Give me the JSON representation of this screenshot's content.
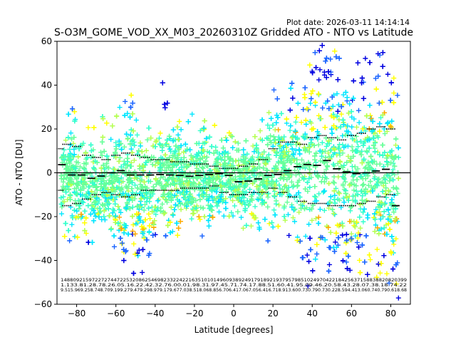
{
  "chart_data": {
    "type": "scatter",
    "title": "S-O3M_GOME_VOD_XX_M03_20260310Z Gridded ATO - NTO vs Latitude",
    "plot_date": "Plot date: 2026-03-11 14:14:14",
    "xlabel": "Latitude [degrees]",
    "ylabel": "ATO - NTO [DU]",
    "xlim": [
      -90,
      90
    ],
    "ylim": [
      -60,
      60
    ],
    "xticks": [
      -80,
      -60,
      -40,
      -20,
      0,
      20,
      40,
      60,
      80
    ],
    "yticks": [
      -60,
      -40,
      -20,
      0,
      20,
      40,
      60
    ],
    "xtick_labels": [
      "−80",
      "−60",
      "−40",
      "−20",
      "0",
      "20",
      "40",
      "60",
      "80"
    ],
    "ytick_labels": [
      "−60",
      "−40",
      "−20",
      "0",
      "20",
      "40",
      "60"
    ],
    "zero_line": 0,
    "colors": {
      "dark_blue": "#0000e0",
      "blue": "#1a64ff",
      "cyan": "#00e6ff",
      "aqua": "#33ffcc",
      "green": "#66ff99",
      "lime": "#b4ff50",
      "yellow": "#ffff00",
      "orange": "#ffaa00"
    },
    "bin_width_deg": 5,
    "mean_per_5deg_bin": [
      {
        "lat": -87.5,
        "mean": 3.7
      },
      {
        "lat": -82.5,
        "mean": -1.0
      },
      {
        "lat": -77.5,
        "mean": -1.0
      },
      {
        "lat": -72.5,
        "mean": -2.5
      },
      {
        "lat": -67.5,
        "mean": -1.5
      },
      {
        "lat": -62.5,
        "mean": 0.0
      },
      {
        "lat": -57.5,
        "mean": 1.0
      },
      {
        "lat": -52.5,
        "mean": -1.0
      },
      {
        "lat": -47.5,
        "mean": -1.0
      },
      {
        "lat": -42.5,
        "mean": -1.0
      },
      {
        "lat": -37.5,
        "mean": -0.8
      },
      {
        "lat": -32.5,
        "mean": -1.0
      },
      {
        "lat": -27.5,
        "mean": -1.2
      },
      {
        "lat": -22.5,
        "mean": -1.6
      },
      {
        "lat": -17.5,
        "mean": -1.2
      },
      {
        "lat": -12.5,
        "mean": -0.8
      },
      {
        "lat": -7.5,
        "mean": -0.4
      },
      {
        "lat": -2.5,
        "mean": -1.2
      },
      {
        "lat": 2.5,
        "mean": -4.1
      },
      {
        "lat": 7.5,
        "mean": -3.8
      },
      {
        "lat": 12.5,
        "mean": -2.8
      },
      {
        "lat": 17.5,
        "mean": -1.2
      },
      {
        "lat": 22.5,
        "mean": -0.8
      },
      {
        "lat": 27.5,
        "mean": 1.0
      },
      {
        "lat": 32.5,
        "mean": 2.8
      },
      {
        "lat": 37.5,
        "mean": 3.8
      },
      {
        "lat": 42.5,
        "mean": 3.4
      },
      {
        "lat": 47.5,
        "mean": 5.6
      },
      {
        "lat": 52.5,
        "mean": 1.8
      },
      {
        "lat": 57.5,
        "mean": 0.4
      },
      {
        "lat": 62.5,
        "mean": -0.4
      },
      {
        "lat": 67.5,
        "mean": 0.0
      },
      {
        "lat": 72.5,
        "mean": 0.8
      },
      {
        "lat": 77.5,
        "mean": 1.6
      },
      {
        "lat": 82.5,
        "mean": -15.0
      }
    ],
    "std_band_upper": [
      {
        "lat": -89,
        "y": 11
      },
      {
        "lat": -85,
        "y": 13
      },
      {
        "lat": -80,
        "y": 12
      },
      {
        "lat": -75,
        "y": 8
      },
      {
        "lat": -70,
        "y": 7
      },
      {
        "lat": -65,
        "y": 6
      },
      {
        "lat": -60,
        "y": 8
      },
      {
        "lat": -55,
        "y": 9
      },
      {
        "lat": -50,
        "y": 8
      },
      {
        "lat": -45,
        "y": 7
      },
      {
        "lat": -40,
        "y": 6
      },
      {
        "lat": -35,
        "y": 6
      },
      {
        "lat": -30,
        "y": 5
      },
      {
        "lat": -25,
        "y": 5
      },
      {
        "lat": -20,
        "y": 4
      },
      {
        "lat": -15,
        "y": 4
      },
      {
        "lat": -10,
        "y": 3
      },
      {
        "lat": -5,
        "y": 2
      },
      {
        "lat": 0,
        "y": 2
      },
      {
        "lat": 5,
        "y": 3
      },
      {
        "lat": 10,
        "y": 4
      },
      {
        "lat": 15,
        "y": 6
      },
      {
        "lat": 20,
        "y": 11
      },
      {
        "lat": 25,
        "y": 14
      },
      {
        "lat": 30,
        "y": 14
      },
      {
        "lat": 35,
        "y": 13
      },
      {
        "lat": 40,
        "y": 16
      },
      {
        "lat": 45,
        "y": 17
      },
      {
        "lat": 50,
        "y": 16
      },
      {
        "lat": 55,
        "y": 15
      },
      {
        "lat": 60,
        "y": 17
      },
      {
        "lat": 65,
        "y": 18
      },
      {
        "lat": 70,
        "y": 20
      },
      {
        "lat": 75,
        "y": 21
      },
      {
        "lat": 80,
        "y": 20
      }
    ],
    "std_band_lower": [
      {
        "lat": -89,
        "y": -8
      },
      {
        "lat": -85,
        "y": -15
      },
      {
        "lat": -80,
        "y": -14
      },
      {
        "lat": -75,
        "y": -12
      },
      {
        "lat": -70,
        "y": -10
      },
      {
        "lat": -65,
        "y": -9
      },
      {
        "lat": -60,
        "y": -10
      },
      {
        "lat": -55,
        "y": -11
      },
      {
        "lat": -50,
        "y": -10
      },
      {
        "lat": -45,
        "y": -8
      },
      {
        "lat": -40,
        "y": -8
      },
      {
        "lat": -35,
        "y": -8
      },
      {
        "lat": -30,
        "y": -8
      },
      {
        "lat": -25,
        "y": -7
      },
      {
        "lat": -20,
        "y": -7
      },
      {
        "lat": -15,
        "y": -7
      },
      {
        "lat": -10,
        "y": -6
      },
      {
        "lat": -5,
        "y": -9
      },
      {
        "lat": 0,
        "y": -10
      },
      {
        "lat": 5,
        "y": -10
      },
      {
        "lat": 10,
        "y": -9
      },
      {
        "lat": 15,
        "y": -9
      },
      {
        "lat": 20,
        "y": -7
      },
      {
        "lat": 25,
        "y": -9
      },
      {
        "lat": 30,
        "y": -11
      },
      {
        "lat": 35,
        "y": -13
      },
      {
        "lat": 40,
        "y": -14
      },
      {
        "lat": 45,
        "y": -14
      },
      {
        "lat": 50,
        "y": -15
      },
      {
        "lat": 55,
        "y": -15
      },
      {
        "lat": 60,
        "y": -15
      },
      {
        "lat": 65,
        "y": -14
      },
      {
        "lat": 70,
        "y": -13
      },
      {
        "lat": 75,
        "y": -11
      },
      {
        "lat": 80,
        "y": -10
      }
    ],
    "scatter_envelope": [
      {
        "lat": -88,
        "lo": -22,
        "hi": 22,
        "outlier_lo": -30,
        "outlier_hi": 40
      },
      {
        "lat": -80,
        "lo": -28,
        "hi": 20,
        "outlier_lo": -33,
        "outlier_hi": 28
      },
      {
        "lat": -70,
        "lo": -28,
        "hi": 18,
        "outlier_lo": -32,
        "outlier_hi": 25
      },
      {
        "lat": -60,
        "lo": -30,
        "hi": 18,
        "outlier_lo": -32,
        "outlier_hi": 28
      },
      {
        "lat": -52,
        "lo": -42,
        "hi": 30,
        "outlier_lo": -48,
        "outlier_hi": 36
      },
      {
        "lat": -45,
        "lo": -40,
        "hi": 20,
        "outlier_lo": -45,
        "outlier_hi": 30
      },
      {
        "lat": -38,
        "lo": -28,
        "hi": 22,
        "outlier_lo": -35,
        "outlier_hi": 47
      },
      {
        "lat": -30,
        "lo": -24,
        "hi": 21,
        "outlier_lo": -28,
        "outlier_hi": 24
      },
      {
        "lat": -20,
        "lo": -24,
        "hi": 20,
        "outlier_lo": -37,
        "outlier_hi": 28
      },
      {
        "lat": -10,
        "lo": -21,
        "hi": 18,
        "outlier_lo": -24,
        "outlier_hi": 22
      },
      {
        "lat": 0,
        "lo": -20,
        "hi": 14,
        "outlier_lo": -24,
        "outlier_hi": 18
      },
      {
        "lat": 10,
        "lo": -22,
        "hi": 15,
        "outlier_lo": -25,
        "outlier_hi": 19
      },
      {
        "lat": 20,
        "lo": -25,
        "hi": 28,
        "outlier_lo": -28,
        "outlier_hi": 38
      },
      {
        "lat": 30,
        "lo": -28,
        "hi": 35,
        "outlier_lo": -30,
        "outlier_hi": 40
      },
      {
        "lat": 38,
        "lo": -38,
        "hi": 45,
        "outlier_lo": -45,
        "outlier_hi": 50
      },
      {
        "lat": 45,
        "lo": -45,
        "hi": 50,
        "outlier_lo": -50,
        "outlier_hi": 60
      },
      {
        "lat": 52,
        "lo": -45,
        "hi": 50,
        "outlier_lo": -52,
        "outlier_hi": 55
      },
      {
        "lat": 60,
        "lo": -45,
        "hi": 48,
        "outlier_lo": -50,
        "outlier_hi": 52
      },
      {
        "lat": 68,
        "lo": -45,
        "hi": 50,
        "outlier_lo": -48,
        "outlier_hi": 55
      },
      {
        "lat": 75,
        "lo": -50,
        "hi": 52,
        "outlier_lo": -55,
        "outlier_hi": 58
      },
      {
        "lat": 83,
        "lo": -55,
        "hi": 55,
        "outlier_lo": -60,
        "outlier_hi": 58
      }
    ],
    "annotation_rows": [
      "148809215972272744722532086254698233224221635101014960938924917918921937957985102497042218425637158838820820399",
      "1.133.81.28.78.26.05.16.22.42.32.76.00.01.98.31.97.45.71.74.17.88.51.60.41.95.09.46.20.58.43.28.07.38.18.74.22",
      "9.515.969.258.748.709.199.279.479.298.979.179.677.038.518.068.856.706.417.067.056.416.718.913.600.730.790.730.228.594.413.060.740.790.618.68"
    ]
  }
}
